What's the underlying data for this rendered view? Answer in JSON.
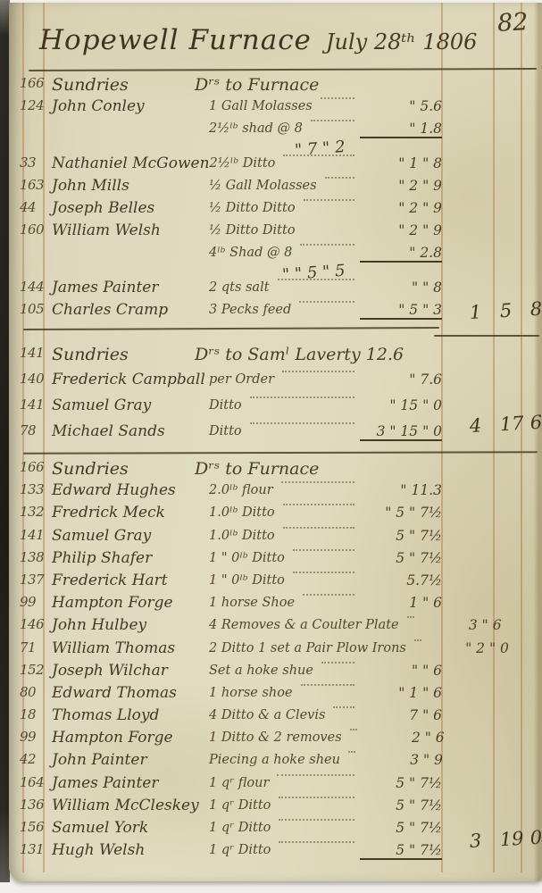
{
  "page": {
    "number": "82",
    "title": "Hopewell Furnace",
    "date": "July 28ᵗʰ 1806"
  },
  "sections": [
    {
      "ref": "166",
      "account": "Sundries",
      "heading": "Dʳˢ to Furnace",
      "rows": [
        {
          "n": "124",
          "name": "John Conley",
          "desc": "1 Gall Molasses",
          "amt": "\" 5.6"
        },
        {
          "n": "",
          "name": "",
          "desc": "2½ˡᵇ shad @ 8",
          "amt": "\" 1.8",
          "u": 1,
          "sum": "\" 7 \" 2"
        },
        {
          "n": "33",
          "name": "Nathaniel McGowen",
          "desc": "2½ˡᵇ Ditto",
          "amt": "\" 1 \" 8"
        },
        {
          "n": "163",
          "name": "John Mills",
          "desc": "½ Gall Molasses",
          "amt": "\" 2 \" 9"
        },
        {
          "n": "44",
          "name": "Joseph Belles",
          "desc": "½ Ditto    Ditto",
          "amt": "\" 2 \" 9"
        },
        {
          "n": "160",
          "name": "William Welsh",
          "desc": "½ Ditto    Ditto",
          "amt": "\" 2 \" 9",
          "nl": 1
        },
        {
          "n": "",
          "name": "",
          "desc": "4ˡᵇ Shad @ 8",
          "amt": "\" 2.8",
          "u": 1,
          "sum": "\" \" 5 \" 5"
        },
        {
          "n": "144",
          "name": "James Painter",
          "desc": "2 qts salt",
          "amt": "\" \" 8"
        },
        {
          "n": "105",
          "name": "Charles Cramp",
          "desc": "3 Pecks feed",
          "amt": "\" 5 \" 3",
          "u": 1
        }
      ],
      "total": {
        "pounds": "1",
        "shillings": "5",
        "pence": "8"
      }
    },
    {
      "ref": "141",
      "account": "Sundries",
      "heading": "Dʳˢ to Samˡ Laverty 12.6",
      "rows": [
        {
          "n": "140",
          "name": "Frederick Campball",
          "desc": "per Order",
          "amt": "\" 7.6"
        },
        {
          "n": "141",
          "name": "Samuel Gray",
          "desc": "Ditto",
          "amt": "\" 15 \" 0"
        },
        {
          "n": "78",
          "name": "Michael Sands",
          "desc": "Ditto",
          "amt": "3 \" 15 \" 0",
          "u": 1
        }
      ],
      "total": {
        "pounds": "4",
        "shillings": "17",
        "pence": "6"
      }
    },
    {
      "ref": "166",
      "account": "Sundries",
      "heading": "Dʳˢ to Furnace",
      "rows": [
        {
          "n": "133",
          "name": "Edward Hughes",
          "desc": "2.0ˡᵇ flour",
          "amt": "\" 11.3"
        },
        {
          "n": "132",
          "name": "Fredrick Meck",
          "desc": "1.0ˡᵇ Ditto",
          "amt": "\" 5 \" 7½"
        },
        {
          "n": "141",
          "name": "Samuel Gray",
          "desc": "1.0ˡᵇ Ditto",
          "amt": "5 \" 7½"
        },
        {
          "n": "138",
          "name": "Philip Shafer",
          "desc": "1 \" 0ˡᵇ Ditto",
          "amt": "5 \" 7½"
        },
        {
          "n": "137",
          "name": "Frederick Hart",
          "desc": "1 \" 0ˡᵇ Ditto",
          "amt": "5.7½"
        },
        {
          "n": "99",
          "name": "Hampton Forge",
          "desc": "1 horse Shoe",
          "amt": "1 \" 6"
        },
        {
          "n": "146",
          "name": "John Hulbey",
          "desc": "4 Removes & a Coulter Plate",
          "amt": "3 \" 6"
        },
        {
          "n": "71",
          "name": "William Thomas",
          "desc": "2 Ditto 1 set a Pair Plow Irons",
          "amt": "\" 2 \" 0"
        },
        {
          "n": "152",
          "name": "Joseph Wilchar",
          "desc": "Set a hoke shue",
          "amt": "\" \" 6"
        },
        {
          "n": "80",
          "name": "Edward Thomas",
          "desc": "1 horse shoe",
          "amt": "\" 1 \" 6"
        },
        {
          "n": "18",
          "name": "Thomas Lloyd",
          "desc": "4 Ditto & a Clevis",
          "amt": "7 \" 6"
        },
        {
          "n": "99",
          "name": "Hampton Forge",
          "desc": "1 Ditto & 2 removes",
          "amt": "2 \" 6"
        },
        {
          "n": "42",
          "name": "John Painter",
          "desc": "Piecing a hoke sheu",
          "amt": "3 \" 9"
        },
        {
          "n": "164",
          "name": "James Painter",
          "desc": "1 qʳ flour",
          "amt": "5 \" 7½"
        },
        {
          "n": "136",
          "name": "William McCleskey",
          "desc": "1 qʳ Ditto",
          "amt": "5 \" 7½"
        },
        {
          "n": "156",
          "name": "Samuel York",
          "desc": "1 qʳ Ditto",
          "amt": "5 \" 7½"
        },
        {
          "n": "131",
          "name": "Hugh Welsh",
          "desc": "1 qʳ Ditto",
          "amt": "5 \" 7½",
          "u": 1
        }
      ],
      "total": {
        "pounds": "3",
        "shillings": "19",
        "pence": "0"
      }
    }
  ]
}
